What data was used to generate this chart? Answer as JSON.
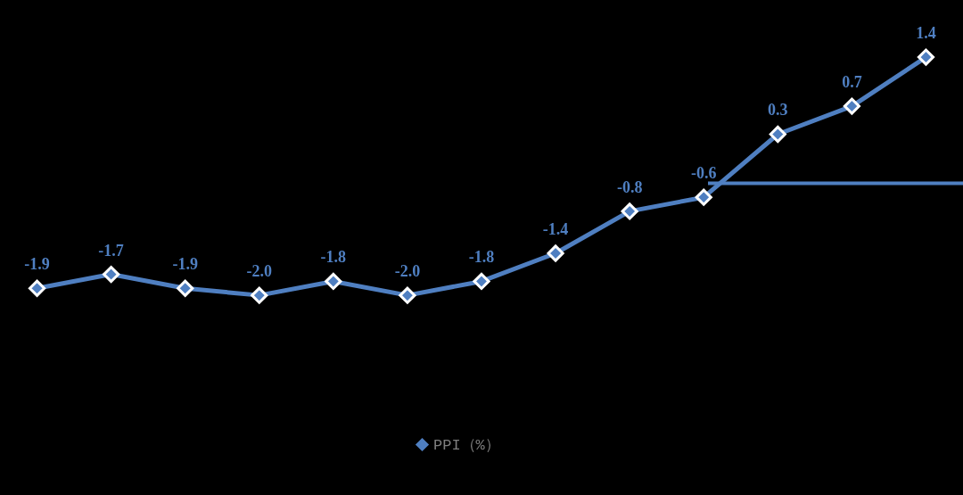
{
  "chart_data": {
    "type": "line",
    "categories": [
      null,
      null,
      null,
      null,
      null,
      null,
      null,
      null,
      null,
      null,
      null,
      null,
      null
    ],
    "series": [
      {
        "name": "PPI（%）",
        "color": "#4f7fc1",
        "values": [
          -1.9,
          -1.7,
          -1.9,
          -2.0,
          -1.8,
          -2.0,
          -1.8,
          -1.4,
          -0.8,
          -0.6,
          0.3,
          0.7,
          1.4
        ],
        "value_labels": [
          "-1.9",
          "-1.7",
          "-1.9",
          "-2.0",
          "-1.8",
          "-2.0",
          "-1.8",
          "-1.4",
          "-0.8",
          "-0.6",
          "0.3",
          "0.7",
          "1.4"
        ]
      }
    ],
    "marker": "diamond",
    "legend": "bottom",
    "grid": false,
    "ref_lines": [
      {
        "axis": "y",
        "value": -0.4,
        "color": "#4f7fc1"
      }
    ]
  }
}
